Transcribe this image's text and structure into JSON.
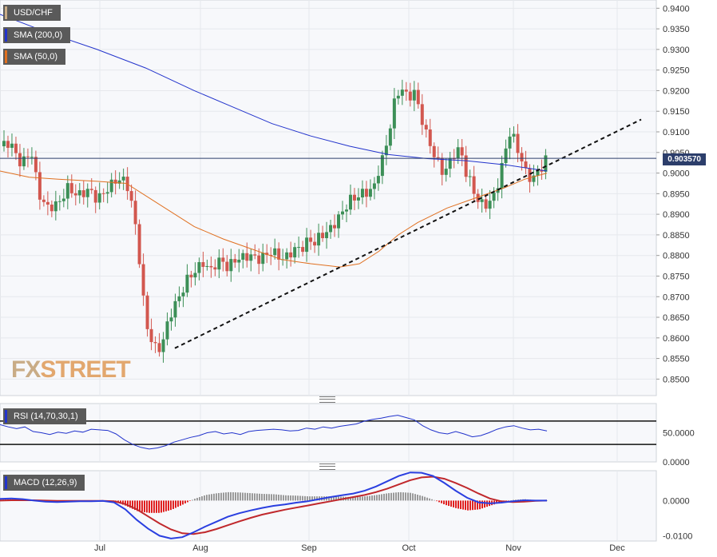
{
  "chart_data": [
    {
      "type": "candlestick",
      "title": "USD/CHF",
      "price_yaxis_ticks": [
        "0.9400",
        "0.9350",
        "0.9300",
        "0.9250",
        "0.9200",
        "0.9150",
        "0.9100",
        "0.9050",
        "0.9000",
        "0.8950",
        "0.8900",
        "0.8850",
        "0.8800",
        "0.8750",
        "0.8700",
        "0.8650",
        "0.8600",
        "0.8550",
        "0.8500"
      ],
      "ylim": [
        0.846,
        0.942
      ],
      "xaxis_ticks": [
        "Jul",
        "Aug",
        "Sep",
        "Oct",
        "Nov",
        "Dec"
      ],
      "current_price": "0.903570",
      "current_price_value": 0.90357,
      "overlays": [
        {
          "name": "SMA (200,0)",
          "color": "#2233cc"
        },
        {
          "name": "SMA (50,0)",
          "color": "#e07020"
        }
      ],
      "close_path": [
        [
          0,
          0.9065
        ],
        [
          10,
          0.9075
        ],
        [
          22,
          0.902
        ],
        [
          32,
          0.9055
        ],
        [
          40,
          0.895
        ],
        [
          48,
          0.8915
        ],
        [
          60,
          0.8925
        ],
        [
          70,
          0.8965
        ],
        [
          80,
          0.8945
        ],
        [
          92,
          0.896
        ],
        [
          100,
          0.8935
        ],
        [
          110,
          0.896
        ],
        [
          120,
          0.8985
        ],
        [
          130,
          0.898
        ],
        [
          138,
          0.89
        ],
        [
          142,
          0.882
        ],
        [
          146,
          0.874
        ],
        [
          148,
          0.868
        ],
        [
          152,
          0.862
        ],
        [
          156,
          0.8595
        ],
        [
          162,
          0.8565
        ],
        [
          168,
          0.8595
        ],
        [
          172,
          0.863
        ],
        [
          176,
          0.866
        ],
        [
          180,
          0.868
        ],
        [
          186,
          0.8705
        ],
        [
          192,
          0.874
        ],
        [
          198,
          0.8755
        ],
        [
          204,
          0.877
        ],
        [
          210,
          0.8785
        ],
        [
          216,
          0.876
        ],
        [
          222,
          0.878
        ],
        [
          228,
          0.879
        ],
        [
          234,
          0.877
        ],
        [
          242,
          0.879
        ],
        [
          250,
          0.8795
        ],
        [
          256,
          0.88
        ],
        [
          262,
          0.8795
        ],
        [
          268,
          0.879
        ],
        [
          272,
          0.88
        ],
        [
          280,
          0.881
        ],
        [
          286,
          0.88
        ],
        [
          292,
          0.879
        ],
        [
          298,
          0.8805
        ],
        [
          304,
          0.8815
        ],
        [
          312,
          0.882
        ],
        [
          318,
          0.884
        ],
        [
          324,
          0.883
        ],
        [
          330,
          0.885
        ],
        [
          336,
          0.8855
        ],
        [
          342,
          0.887
        ],
        [
          348,
          0.889
        ],
        [
          354,
          0.891
        ],
        [
          360,
          0.8935
        ],
        [
          366,
          0.894
        ],
        [
          372,
          0.895
        ],
        [
          380,
          0.8955
        ],
        [
          386,
          0.897
        ],
        [
          390,
          0.901
        ],
        [
          396,
          0.905
        ],
        [
          400,
          0.909
        ],
        [
          404,
          0.915
        ],
        [
          408,
          0.919
        ],
        [
          414,
          0.9205
        ],
        [
          420,
          0.918
        ],
        [
          426,
          0.92
        ],
        [
          432,
          0.915
        ],
        [
          438,
          0.91
        ],
        [
          444,
          0.906
        ],
        [
          450,
          0.903
        ],
        [
          456,
          0.9
        ],
        [
          462,
          0.902
        ],
        [
          468,
          0.905
        ],
        [
          474,
          0.906
        ],
        [
          478,
          0.901
        ],
        [
          484,
          0.898
        ],
        [
          490,
          0.894
        ],
        [
          498,
          0.892
        ],
        [
          504,
          0.893
        ],
        [
          510,
          0.895
        ],
        [
          514,
          0.899
        ],
        [
          520,
          0.905
        ],
        [
          524,
          0.91
        ],
        [
          528,
          0.909
        ],
        [
          532,
          0.906
        ],
        [
          536,
          0.904
        ],
        [
          542,
          0.8995
        ],
        [
          548,
          0.8985
        ],
        [
          552,
          0.9
        ],
        [
          556,
          0.9005
        ],
        [
          560,
          0.903
        ],
        [
          563,
          0.90357
        ]
      ],
      "sma200_path": [
        [
          0,
          0.9385
        ],
        [
          50,
          0.934
        ],
        [
          100,
          0.93
        ],
        [
          150,
          0.9255
        ],
        [
          200,
          0.92
        ],
        [
          240,
          0.916
        ],
        [
          280,
          0.912
        ],
        [
          320,
          0.909
        ],
        [
          360,
          0.9065
        ],
        [
          400,
          0.9045
        ],
        [
          440,
          0.9035
        ],
        [
          480,
          0.903
        ],
        [
          520,
          0.902
        ],
        [
          563,
          0.9005
        ]
      ],
      "sma50_path": [
        [
          0,
          0.9005
        ],
        [
          30,
          0.899
        ],
        [
          60,
          0.8985
        ],
        [
          100,
          0.898
        ],
        [
          130,
          0.8975
        ],
        [
          160,
          0.893
        ],
        [
          200,
          0.887
        ],
        [
          230,
          0.884
        ],
        [
          260,
          0.8815
        ],
        [
          290,
          0.879
        ],
        [
          320,
          0.878
        ],
        [
          350,
          0.8772
        ],
        [
          370,
          0.878
        ],
        [
          390,
          0.881
        ],
        [
          410,
          0.885
        ],
        [
          430,
          0.888
        ],
        [
          460,
          0.8915
        ],
        [
          490,
          0.894
        ],
        [
          520,
          0.8965
        ],
        [
          540,
          0.8985
        ],
        [
          563,
          0.9
        ]
      ],
      "trendline": [
        [
          180,
          0.8575
        ],
        [
          660,
          0.913
        ]
      ]
    },
    {
      "type": "line",
      "title": "RSI (14,70,30,1)",
      "yaxis_ticks": [
        "50.0000",
        "0.0000"
      ],
      "ylim": [
        0,
        100
      ],
      "levels": [
        70,
        30
      ],
      "series": [
        {
          "values": [
            64,
            60,
            57,
            60,
            52,
            50,
            47,
            51,
            49,
            53,
            51,
            56,
            55,
            54,
            48,
            38,
            30,
            25,
            22,
            24,
            28,
            34,
            38,
            42,
            45,
            50,
            52,
            48,
            50,
            47,
            52,
            54,
            55,
            56,
            55,
            53,
            54,
            58,
            56,
            60,
            58,
            61,
            63,
            65,
            70,
            73,
            75,
            78,
            80,
            76,
            72,
            62,
            55,
            50,
            48,
            52,
            48,
            43,
            45,
            50,
            56,
            60,
            62,
            58,
            55,
            56,
            53
          ]
        }
      ]
    },
    {
      "type": "line",
      "title": "MACD (12,26,9)",
      "yaxis_ticks": [
        "0.0000",
        "-0.0100"
      ],
      "ylim": [
        -0.0115,
        0.0085
      ],
      "series": [
        {
          "name": "MACD",
          "color": "#2a3fe0",
          "values": [
            0.0005,
            0.0006,
            0.0004,
            0.0,
            -0.0003,
            -0.0004,
            -0.0003,
            -0.0002,
            -0.0002,
            -0.0001,
            -0.0005,
            -0.0025,
            -0.0055,
            -0.008,
            -0.01,
            -0.0108,
            -0.0104,
            -0.009,
            -0.0074,
            -0.006,
            -0.0046,
            -0.0036,
            -0.0028,
            -0.0021,
            -0.0015,
            -0.0011,
            -0.0006,
            -0.0002,
            0.0004,
            0.001,
            0.0015,
            0.002,
            0.0028,
            0.004,
            0.0055,
            0.007,
            0.008,
            0.0079,
            0.007,
            0.005,
            0.0028,
            0.0008,
            -0.0005,
            -0.0008,
            -0.0006,
            -0.0002,
            0.0001,
            0.0,
            0.0
          ]
        },
        {
          "name": "Signal",
          "color": "#c0282c",
          "values": [
            0.0,
            0.0001,
            0.0001,
            0.0001,
            0.0,
            -0.0001,
            -0.0001,
            -0.0001,
            -0.0001,
            -0.0001,
            -0.0002,
            -0.001,
            -0.0025,
            -0.0045,
            -0.0065,
            -0.0082,
            -0.0093,
            -0.0095,
            -0.009,
            -0.0081,
            -0.007,
            -0.0059,
            -0.0049,
            -0.004,
            -0.0033,
            -0.0026,
            -0.002,
            -0.0014,
            -0.0008,
            -0.0002,
            0.0004,
            0.001,
            0.0016,
            0.0024,
            0.0034,
            0.0046,
            0.0058,
            0.0066,
            0.0068,
            0.0062,
            0.005,
            0.0036,
            0.002,
            0.0006,
            -0.0002,
            -0.0004,
            -0.0003,
            -0.0001,
            0.0
          ]
        }
      ]
    }
  ]
}
